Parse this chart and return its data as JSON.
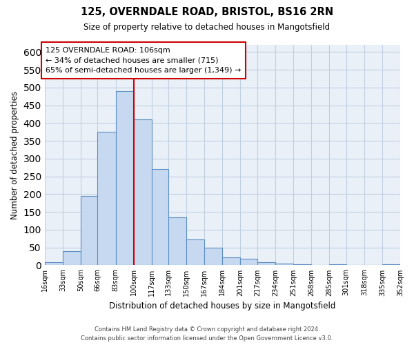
{
  "title_line1": "125, OVERNDALE ROAD, BRISTOL, BS16 2RN",
  "title_line2": "Size of property relative to detached houses in Mangotsfield",
  "xlabel": "Distribution of detached houses by size in Mangotsfield",
  "ylabel": "Number of detached properties",
  "bar_labels": [
    "16sqm",
    "33sqm",
    "50sqm",
    "66sqm",
    "83sqm",
    "100sqm",
    "117sqm",
    "133sqm",
    "150sqm",
    "167sqm",
    "184sqm",
    "201sqm",
    "217sqm",
    "234sqm",
    "251sqm",
    "268sqm",
    "285sqm",
    "301sqm",
    "318sqm",
    "335sqm",
    "352sqm"
  ],
  "bar_values": [
    8,
    40,
    195,
    375,
    490,
    410,
    270,
    135,
    73,
    50,
    22,
    18,
    8,
    5,
    2,
    0,
    3,
    0,
    0,
    3
  ],
  "bar_color": "#c6d9f0",
  "bar_edge_color": "#5b8ec4",
  "bin_edges": [
    16,
    33,
    50,
    66,
    83,
    100,
    117,
    133,
    150,
    167,
    184,
    201,
    217,
    234,
    251,
    268,
    285,
    301,
    318,
    335,
    352
  ],
  "vline_x": 100,
  "vline_color": "#cc0000",
  "annotation_text_line1": "125 OVERNDALE ROAD: 106sqm",
  "annotation_text_line2": "← 34% of detached houses are smaller (715)",
  "annotation_text_line3": "65% of semi-detached houses are larger (1,349) →",
  "ylim": [
    0,
    620
  ],
  "yticks": [
    0,
    50,
    100,
    150,
    200,
    250,
    300,
    350,
    400,
    450,
    500,
    550,
    600
  ],
  "footer_line1": "Contains HM Land Registry data © Crown copyright and database right 2024.",
  "footer_line2": "Contains public sector information licensed under the Open Government Licence v3.0.",
  "bg_color": "#ffffff",
  "plot_bg_color": "#eaf0f8",
  "grid_color": "#c0cfe0"
}
